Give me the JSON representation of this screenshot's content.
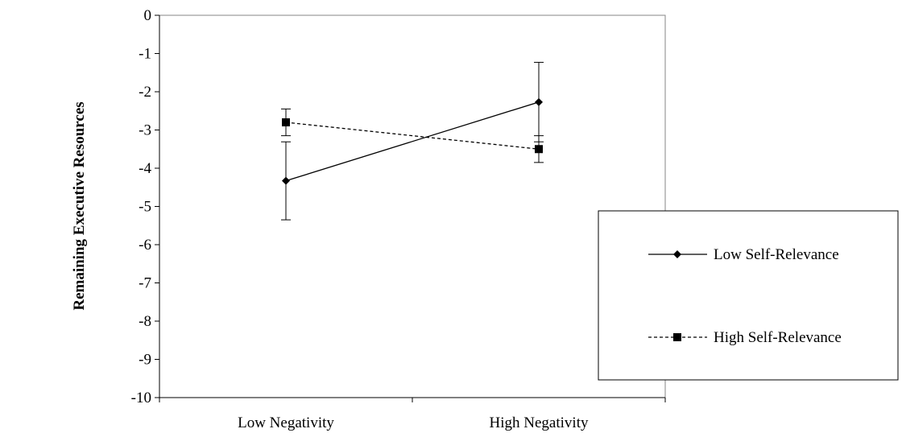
{
  "chart_data": {
    "type": "line",
    "categories": [
      "Low Negativity",
      "High Negativity"
    ],
    "ylabel": "Remaining Executive Resources",
    "xlabel": "",
    "ylim": [
      -10,
      0
    ],
    "yticks": [
      0,
      -1,
      -2,
      -3,
      -4,
      -5,
      -6,
      -7,
      -8,
      -9,
      -10
    ],
    "grid": false,
    "legend_position": "right",
    "series": [
      {
        "name": "Low Self-Relevance",
        "values": [
          -4.33,
          -2.27
        ],
        "error": [
          1.02,
          1.04
        ],
        "marker": "diamond",
        "line_style": "solid",
        "color": "#000000"
      },
      {
        "name": "High Self-Relevance",
        "values": [
          -2.8,
          -3.5
        ],
        "error": [
          0.35,
          0.35
        ],
        "marker": "square",
        "line_style": "dashed",
        "color": "#000000"
      }
    ]
  }
}
